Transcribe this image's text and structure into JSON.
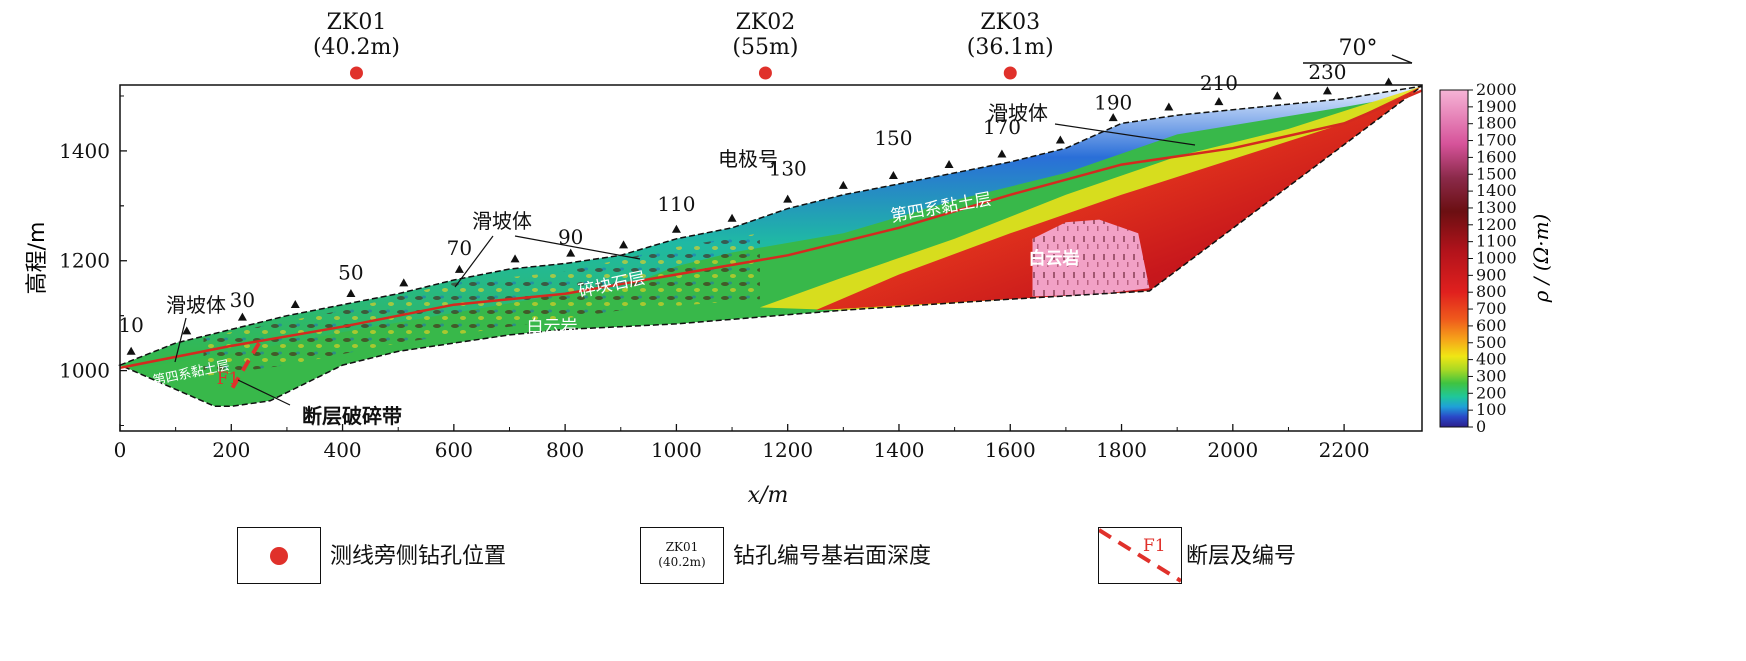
{
  "chart_data": {
    "type": "heatmap",
    "xlabel": "x/m",
    "ylabel": "高程/m",
    "xlim": [
      0,
      2340
    ],
    "ylim": [
      890,
      1520
    ],
    "xticks": [
      "0",
      "200",
      "400",
      "600",
      "800",
      "1000",
      "1200",
      "1400",
      "1600",
      "1800",
      "2000",
      "2200"
    ],
    "yticks": [
      "1000",
      "1200",
      "1400"
    ],
    "colorbar": {
      "label": "ρ / (Ω·m)",
      "min": 0,
      "max": 2000,
      "ticks": [
        "2000",
        "1900",
        "1800",
        "1700",
        "1600",
        "1500",
        "1400",
        "1300",
        "1200",
        "1100",
        "1000",
        "900",
        "800",
        "700",
        "600",
        "500",
        "400",
        "300",
        "200",
        "100",
        "0"
      ]
    },
    "boreholes": [
      {
        "name": "ZK01",
        "depth": "(40.2m)",
        "x": 425
      },
      {
        "name": "ZK02",
        "depth": "(55m)",
        "x": 1160
      },
      {
        "name": "ZK03",
        "depth": "(36.1m)",
        "x": 1600
      }
    ],
    "electrode_labels": [
      {
        "label": "10",
        "x": 20,
        "y": 1045
      },
      {
        "label": "30",
        "x": 220,
        "y": 1090
      },
      {
        "label": "50",
        "x": 415,
        "y": 1140
      },
      {
        "label": "70",
        "x": 610,
        "y": 1185
      },
      {
        "label": "90",
        "x": 810,
        "y": 1205
      },
      {
        "label": "110",
        "x": 1000,
        "y": 1265
      },
      {
        "label": "130",
        "x": 1200,
        "y": 1330
      },
      {
        "label": "150",
        "x": 1390,
        "y": 1385
      },
      {
        "label": "170",
        "x": 1585,
        "y": 1405
      },
      {
        "label": "190",
        "x": 1785,
        "y": 1450
      },
      {
        "label": "210",
        "x": 1975,
        "y": 1485
      },
      {
        "label": "230",
        "x": 2170,
        "y": 1505
      }
    ],
    "annotations": {
      "electrode_title": "电极号",
      "landslide": "滑坡体",
      "quaternary_clay": "第四系黏土层",
      "quaternary_clay_left": "第四系黏土层",
      "gravel_layer": "碎块石层",
      "dolomite": "白云岩",
      "fault_zone": "断层破碎带",
      "fault_label": "F1",
      "dip": "70°"
    }
  },
  "legend": {
    "borehole_position": "测线旁侧钻孔位置",
    "borehole_sample_name": "ZK01",
    "borehole_sample_depth": "(40.2m)",
    "borehole_depth_desc": "钻孔编号基岩面深度",
    "fault_sample": "F1",
    "fault_desc": "断层及编号"
  },
  "colors": {
    "borehole_dot": "#e0312b",
    "fault_line": "#e0312b",
    "interface_line": "#d42a1f"
  }
}
